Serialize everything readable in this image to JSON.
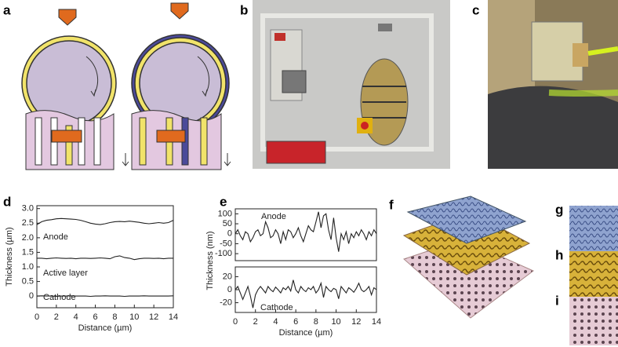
{
  "panel_labels": [
    "a",
    "b",
    "c",
    "d",
    "e",
    "f",
    "g",
    "h",
    "i"
  ],
  "chart_data": [
    {
      "type": "line",
      "xlabel": "Distance (µm)",
      "ylabel": "Thickness (µm)",
      "xlim": [
        0,
        14
      ],
      "xticks": [
        0,
        2,
        4,
        6,
        8,
        10,
        12,
        14
      ],
      "ylim": [
        -0.4,
        3.1
      ],
      "yticks": [
        0,
        0.5,
        {
          "value": 1,
          "label": "1.0"
        },
        1.5,
        {
          "value": 2,
          "label": "2.0"
        },
        2.5,
        {
          "value": 3,
          "label": "3.0"
        }
      ],
      "x": [
        0,
        0.5,
        1,
        1.5,
        2,
        2.5,
        3,
        3.5,
        4,
        4.5,
        5,
        5.5,
        6,
        6.5,
        7,
        7.5,
        8,
        8.5,
        9,
        9.5,
        10,
        10.5,
        11,
        11.5,
        12,
        12.5,
        13,
        13.5,
        14
      ],
      "series": [
        {
          "name": "Anode",
          "color": "#222222",
          "values": [
            2.45,
            2.55,
            2.6,
            2.62,
            2.65,
            2.66,
            2.65,
            2.64,
            2.63,
            2.6,
            2.55,
            2.5,
            2.47,
            2.45,
            2.48,
            2.52,
            2.55,
            2.56,
            2.55,
            2.57,
            2.55,
            2.53,
            2.5,
            2.48,
            2.5,
            2.52,
            2.5,
            2.52,
            2.6
          ]
        },
        {
          "name": "Active layer",
          "color": "#222222",
          "values": [
            1.3,
            1.3,
            1.28,
            1.3,
            1.31,
            1.3,
            1.29,
            1.3,
            1.28,
            1.3,
            1.3,
            1.29,
            1.3,
            1.31,
            1.3,
            1.28,
            1.35,
            1.38,
            1.32,
            1.3,
            1.25,
            1.28,
            1.3,
            1.3,
            1.29,
            1.3,
            1.28,
            1.3,
            1.3
          ]
        },
        {
          "name": "Cathode",
          "color": "#222222",
          "values": [
            0,
            0.01,
            0,
            0,
            -0.01,
            0,
            0,
            0.01,
            0,
            0,
            0,
            -0.01,
            0,
            0,
            0.01,
            0,
            0,
            0,
            -0.01,
            0,
            0,
            0,
            0.01,
            0,
            0,
            0,
            0,
            0,
            0.01
          ]
        }
      ]
    },
    {
      "type": "line",
      "ylabel": "Thickness (nm)",
      "xlim": [
        0,
        14
      ],
      "ylim": [
        -135,
        125
      ],
      "yticks": [
        -100,
        -50,
        0,
        50,
        100
      ],
      "x": [
        0,
        0.25,
        0.5,
        0.75,
        1,
        1.25,
        1.5,
        1.75,
        2,
        2.25,
        2.5,
        2.75,
        3,
        3.25,
        3.5,
        3.75,
        4,
        4.25,
        4.5,
        4.75,
        5,
        5.25,
        5.5,
        5.75,
        6,
        6.25,
        6.5,
        6.75,
        7,
        7.25,
        7.5,
        7.75,
        8,
        8.25,
        8.5,
        8.75,
        9,
        9.25,
        9.5,
        9.75,
        10,
        10.25,
        10.5,
        10.75,
        11,
        11.25,
        11.5,
        11.75,
        12,
        12.25,
        12.5,
        12.75,
        13,
        13.25,
        13.5,
        13.75,
        14
      ],
      "series": [
        {
          "name": "Anode",
          "color": "#222222",
          "values": [
            0,
            20,
            -10,
            -30,
            10,
            0,
            -40,
            -20,
            10,
            20,
            -10,
            0,
            60,
            30,
            -20,
            -10,
            20,
            0,
            -50,
            10,
            -30,
            20,
            10,
            -20,
            0,
            30,
            -10,
            -40,
            0,
            40,
            20,
            10,
            60,
            110,
            30,
            90,
            100,
            20,
            -30,
            80,
            -20,
            -90,
            0,
            -30,
            10,
            -50,
            0,
            -20,
            10,
            -10,
            20,
            0,
            -30,
            10,
            -10,
            20,
            0
          ]
        }
      ]
    },
    {
      "type": "line",
      "xlabel": "Distance (µm)",
      "xlim": [
        0,
        14
      ],
      "xticks": [
        0,
        2,
        4,
        6,
        8,
        10,
        12,
        14
      ],
      "ylim": [
        -35,
        35
      ],
      "yticks": [
        -20,
        0,
        20
      ],
      "x": [
        0,
        0.25,
        0.5,
        0.75,
        1,
        1.25,
        1.5,
        1.75,
        2,
        2.25,
        2.5,
        2.75,
        3,
        3.25,
        3.5,
        3.75,
        4,
        4.25,
        4.5,
        4.75,
        5,
        5.25,
        5.5,
        5.75,
        6,
        6.25,
        6.5,
        6.75,
        7,
        7.25,
        7.5,
        7.75,
        8,
        8.25,
        8.5,
        8.75,
        9,
        9.25,
        9.5,
        9.75,
        10,
        10.25,
        10.5,
        10.75,
        11,
        11.25,
        11.5,
        11.75,
        12,
        12.25,
        12.5,
        12.75,
        13,
        13.25,
        13.5,
        13.75,
        14
      ],
      "series": [
        {
          "name": "Cathode",
          "color": "#222222",
          "values": [
            0,
            5,
            -5,
            -15,
            -5,
            5,
            -10,
            -28,
            -8,
            0,
            5,
            0,
            -5,
            5,
            0,
            -3,
            4,
            0,
            -5,
            3,
            0,
            5,
            -2,
            15,
            0,
            -5,
            5,
            0,
            -3,
            3,
            0,
            5,
            -5,
            0,
            10,
            -12,
            5,
            0,
            -3,
            2,
            0,
            -14,
            5,
            0,
            -5,
            3,
            0,
            -4,
            2,
            10,
            0,
            -3,
            0,
            5,
            -8,
            3,
            0
          ]
        }
      ]
    }
  ]
}
